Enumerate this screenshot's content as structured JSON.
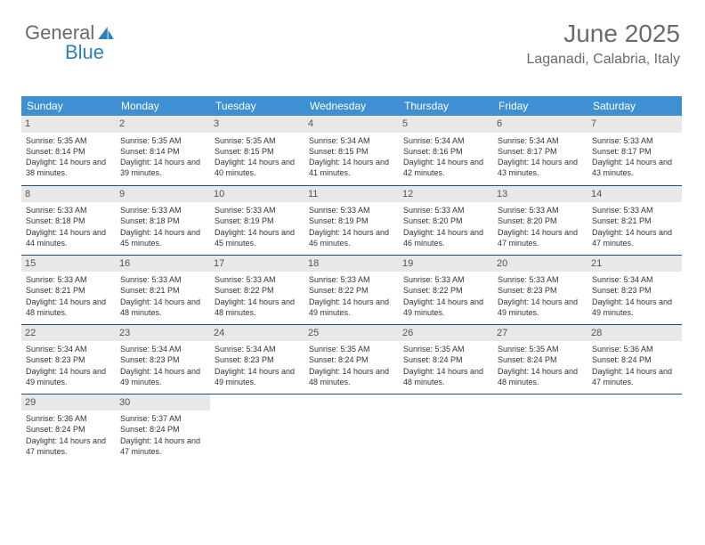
{
  "logo": {
    "part1": "General",
    "part2": "Blue"
  },
  "header": {
    "month": "June 2025",
    "location": "Laganadi, Calabria, Italy"
  },
  "colors": {
    "header_bg": "#3f8fd3",
    "border": "#1f4e79",
    "daynum_bg": "#e8e8e8",
    "text": "#333",
    "muted": "#6b6b6b",
    "brand": "#2e7fbf"
  },
  "weekdays": [
    "Sunday",
    "Monday",
    "Tuesday",
    "Wednesday",
    "Thursday",
    "Friday",
    "Saturday"
  ],
  "cells": [
    {
      "day": "1",
      "sunrise": "5:35 AM",
      "sunset": "8:14 PM",
      "daylight": "14 hours and 38 minutes."
    },
    {
      "day": "2",
      "sunrise": "5:35 AM",
      "sunset": "8:14 PM",
      "daylight": "14 hours and 39 minutes."
    },
    {
      "day": "3",
      "sunrise": "5:35 AM",
      "sunset": "8:15 PM",
      "daylight": "14 hours and 40 minutes."
    },
    {
      "day": "4",
      "sunrise": "5:34 AM",
      "sunset": "8:15 PM",
      "daylight": "14 hours and 41 minutes."
    },
    {
      "day": "5",
      "sunrise": "5:34 AM",
      "sunset": "8:16 PM",
      "daylight": "14 hours and 42 minutes."
    },
    {
      "day": "6",
      "sunrise": "5:34 AM",
      "sunset": "8:17 PM",
      "daylight": "14 hours and 43 minutes."
    },
    {
      "day": "7",
      "sunrise": "5:33 AM",
      "sunset": "8:17 PM",
      "daylight": "14 hours and 43 minutes."
    },
    {
      "day": "8",
      "sunrise": "5:33 AM",
      "sunset": "8:18 PM",
      "daylight": "14 hours and 44 minutes."
    },
    {
      "day": "9",
      "sunrise": "5:33 AM",
      "sunset": "8:18 PM",
      "daylight": "14 hours and 45 minutes."
    },
    {
      "day": "10",
      "sunrise": "5:33 AM",
      "sunset": "8:19 PM",
      "daylight": "14 hours and 45 minutes."
    },
    {
      "day": "11",
      "sunrise": "5:33 AM",
      "sunset": "8:19 PM",
      "daylight": "14 hours and 46 minutes."
    },
    {
      "day": "12",
      "sunrise": "5:33 AM",
      "sunset": "8:20 PM",
      "daylight": "14 hours and 46 minutes."
    },
    {
      "day": "13",
      "sunrise": "5:33 AM",
      "sunset": "8:20 PM",
      "daylight": "14 hours and 47 minutes."
    },
    {
      "day": "14",
      "sunrise": "5:33 AM",
      "sunset": "8:21 PM",
      "daylight": "14 hours and 47 minutes."
    },
    {
      "day": "15",
      "sunrise": "5:33 AM",
      "sunset": "8:21 PM",
      "daylight": "14 hours and 48 minutes."
    },
    {
      "day": "16",
      "sunrise": "5:33 AM",
      "sunset": "8:21 PM",
      "daylight": "14 hours and 48 minutes."
    },
    {
      "day": "17",
      "sunrise": "5:33 AM",
      "sunset": "8:22 PM",
      "daylight": "14 hours and 48 minutes."
    },
    {
      "day": "18",
      "sunrise": "5:33 AM",
      "sunset": "8:22 PM",
      "daylight": "14 hours and 49 minutes."
    },
    {
      "day": "19",
      "sunrise": "5:33 AM",
      "sunset": "8:22 PM",
      "daylight": "14 hours and 49 minutes."
    },
    {
      "day": "20",
      "sunrise": "5:33 AM",
      "sunset": "8:23 PM",
      "daylight": "14 hours and 49 minutes."
    },
    {
      "day": "21",
      "sunrise": "5:34 AM",
      "sunset": "8:23 PM",
      "daylight": "14 hours and 49 minutes."
    },
    {
      "day": "22",
      "sunrise": "5:34 AM",
      "sunset": "8:23 PM",
      "daylight": "14 hours and 49 minutes."
    },
    {
      "day": "23",
      "sunrise": "5:34 AM",
      "sunset": "8:23 PM",
      "daylight": "14 hours and 49 minutes."
    },
    {
      "day": "24",
      "sunrise": "5:34 AM",
      "sunset": "8:23 PM",
      "daylight": "14 hours and 49 minutes."
    },
    {
      "day": "25",
      "sunrise": "5:35 AM",
      "sunset": "8:24 PM",
      "daylight": "14 hours and 48 minutes."
    },
    {
      "day": "26",
      "sunrise": "5:35 AM",
      "sunset": "8:24 PM",
      "daylight": "14 hours and 48 minutes."
    },
    {
      "day": "27",
      "sunrise": "5:35 AM",
      "sunset": "8:24 PM",
      "daylight": "14 hours and 48 minutes."
    },
    {
      "day": "28",
      "sunrise": "5:36 AM",
      "sunset": "8:24 PM",
      "daylight": "14 hours and 47 minutes."
    },
    {
      "day": "29",
      "sunrise": "5:36 AM",
      "sunset": "8:24 PM",
      "daylight": "14 hours and 47 minutes."
    },
    {
      "day": "30",
      "sunrise": "5:37 AM",
      "sunset": "8:24 PM",
      "daylight": "14 hours and 47 minutes."
    }
  ],
  "labels": {
    "sunrise": "Sunrise: ",
    "sunset": "Sunset: ",
    "daylight": "Daylight: "
  }
}
